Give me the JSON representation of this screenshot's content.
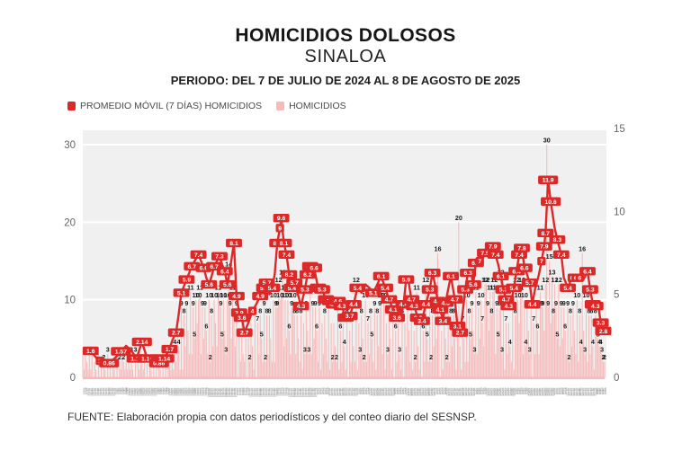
{
  "header": {
    "title": "HOMICIDIOS DOLOSOS",
    "subtitle": "SINALOA",
    "period": "PERIODO: DEL 7 DE JULIO DE 2024 AL 8 DE AGOSTO DE 2025"
  },
  "legend": {
    "items": [
      {
        "label": "PROMEDIO MÓVIL (7 DÍAS) HOMICIDIOS",
        "color": "#de2828"
      },
      {
        "label": "HOMICIDIOS",
        "color": "#f6baba"
      }
    ]
  },
  "footer": {
    "source": "FUENTE: Elaboración propia con datos periodísticos y del conteo diario del SESNSP."
  },
  "chart_data": {
    "type": "bar+line",
    "title": "HOMICIDIOS DOLOSOS — SINALOA",
    "x_start_date": "2024-07-07",
    "x_end_date": "2025-08-08",
    "days": 398,
    "x_tick_date_format": "d/m/yy",
    "left_axis": {
      "series": "HOMICIDIOS (barras diarias)",
      "ticks": [
        0,
        10,
        20,
        30
      ],
      "max": 32
    },
    "right_axis": {
      "series": "PROMEDIO MÓVIL 7 DÍAS (línea)",
      "ticks": [
        0,
        5,
        10,
        15
      ],
      "max": 15
    },
    "grid": "horizontal-white",
    "legend_position": "top-left",
    "moving_avg_points": [
      [
        6,
        1.6
      ],
      [
        10,
        1.2,
        0
      ],
      [
        13,
        1
      ],
      [
        17,
        0.9,
        0
      ],
      [
        20,
        0.86
      ],
      [
        25,
        1.2,
        0
      ],
      [
        29,
        1.57
      ],
      [
        33,
        1.9,
        0
      ],
      [
        37,
        1.6,
        0
      ],
      [
        41,
        1.14
      ],
      [
        45,
        2.14
      ],
      [
        49,
        1.14
      ],
      [
        52,
        1,
        0
      ],
      [
        55,
        1
      ],
      [
        58,
        0.86
      ],
      [
        62,
        1.14
      ],
      [
        66,
        1.7
      ],
      [
        68,
        2.2,
        0
      ],
      [
        71,
        2.7
      ],
      [
        73,
        3.8,
        0
      ],
      [
        75,
        5.1
      ],
      [
        77,
        5.5,
        0
      ],
      [
        79,
        5.9
      ],
      [
        81,
        6.3,
        0
      ],
      [
        83,
        6.7
      ],
      [
        85,
        7,
        0
      ],
      [
        88,
        7.4
      ],
      [
        90,
        7,
        0
      ],
      [
        92,
        6.6
      ],
      [
        94,
        6,
        0
      ],
      [
        96,
        5.6
      ],
      [
        98,
        6.1,
        0
      ],
      [
        100,
        6.7
      ],
      [
        102,
        7,
        0
      ],
      [
        104,
        7.3
      ],
      [
        106,
        6.8,
        0
      ],
      [
        108,
        6.4
      ],
      [
        110,
        5.6
      ],
      [
        112,
        6.5,
        0
      ],
      [
        115,
        8.1
      ],
      [
        117,
        4.9
      ],
      [
        119,
        3.9
      ],
      [
        121,
        3.6
      ],
      [
        123,
        2.7
      ],
      [
        126,
        3.3,
        0
      ],
      [
        129,
        4
      ],
      [
        132,
        4.4,
        0
      ],
      [
        135,
        4.9
      ],
      [
        138,
        5.4
      ],
      [
        140,
        5.7
      ],
      [
        142,
        5,
        0
      ],
      [
        144,
        5.4
      ],
      [
        146,
        6.2,
        0
      ],
      [
        148,
        8.1
      ],
      [
        150,
        9
      ],
      [
        151,
        9.6
      ],
      [
        153,
        8.1
      ],
      [
        155,
        7.4
      ],
      [
        157,
        6.2
      ],
      [
        159,
        5.4
      ],
      [
        161,
        5.7
      ],
      [
        164,
        4.9,
        0
      ],
      [
        166,
        4.3
      ],
      [
        169,
        5.3
      ],
      [
        171,
        6.2
      ],
      [
        173,
        6.7
      ],
      [
        176,
        6.6
      ],
      [
        179,
        5.4
      ],
      [
        182,
        5.3
      ],
      [
        185,
        4.7
      ],
      [
        188,
        4.6
      ],
      [
        191,
        4.4
      ],
      [
        194,
        4.6
      ],
      [
        197,
        4.3
      ],
      [
        200,
        3.6
      ],
      [
        203,
        3.7
      ],
      [
        206,
        4.4
      ],
      [
        209,
        5.4
      ],
      [
        212,
        5.1,
        0
      ],
      [
        215,
        5.6,
        0
      ],
      [
        218,
        5.4,
        0
      ],
      [
        221,
        5.1
      ],
      [
        224,
        5.6,
        0
      ],
      [
        227,
        6.1
      ],
      [
        230,
        5.4
      ],
      [
        233,
        4.7
      ],
      [
        236,
        4.1
      ],
      [
        239,
        3.6
      ],
      [
        241,
        3.4,
        0
      ],
      [
        244,
        4.4
      ],
      [
        246,
        5.9
      ],
      [
        248,
        5.7,
        0
      ],
      [
        250,
        4.7
      ],
      [
        252,
        4.3
      ],
      [
        255,
        3.6
      ],
      [
        258,
        3.4
      ],
      [
        261,
        4.4
      ],
      [
        264,
        5.3
      ],
      [
        266,
        6.3
      ],
      [
        268,
        5.6,
        0
      ],
      [
        270,
        4.6
      ],
      [
        272,
        4.1
      ],
      [
        274,
        3.4
      ],
      [
        276,
        4.5
      ],
      [
        278,
        5.3,
        0
      ],
      [
        280,
        6.1
      ],
      [
        283,
        4.7
      ],
      [
        285,
        3.1
      ],
      [
        287,
        2.7
      ],
      [
        289,
        3.9,
        0
      ],
      [
        291,
        5.3
      ],
      [
        293,
        6.3
      ],
      [
        295,
        6.5,
        0
      ],
      [
        297,
        5.6
      ],
      [
        299,
        6.9
      ],
      [
        302,
        7
      ],
      [
        304,
        7.1,
        0
      ],
      [
        306,
        7.5
      ],
      [
        308,
        7.3,
        0
      ],
      [
        310,
        7.7,
        0
      ],
      [
        312,
        7.9
      ],
      [
        314,
        7.4
      ],
      [
        316,
        6.8,
        0
      ],
      [
        318,
        6.1
      ],
      [
        320,
        5.3
      ],
      [
        322,
        4.7
      ],
      [
        324,
        4.3
      ],
      [
        326,
        4.6,
        0
      ],
      [
        328,
        5.4
      ],
      [
        330,
        6.4
      ],
      [
        332,
        7.4
      ],
      [
        334,
        7.8
      ],
      [
        336,
        6.6
      ],
      [
        338,
        6.2,
        0
      ],
      [
        340,
        5.7
      ],
      [
        342,
        4.4
      ],
      [
        344,
        5.3,
        0
      ],
      [
        347,
        6.2,
        0
      ],
      [
        349,
        7
      ],
      [
        351,
        7.9
      ],
      [
        352,
        8.7
      ],
      [
        354,
        11.9
      ],
      [
        356,
        10.6
      ],
      [
        359,
        9,
        0
      ],
      [
        361,
        8.3
      ],
      [
        364,
        7.4
      ],
      [
        366,
        6,
        0
      ],
      [
        369,
        5.4
      ],
      [
        372,
        6
      ],
      [
        375,
        6
      ],
      [
        378,
        6
      ],
      [
        381,
        5.9,
        0
      ],
      [
        384,
        6.4
      ],
      [
        386,
        5.3
      ],
      [
        388,
        4.4
      ],
      [
        390,
        4.3
      ],
      [
        392,
        4.5,
        0
      ],
      [
        394,
        3.3
      ],
      [
        396,
        2.8
      ]
    ],
    "bar_values_labeled": [
      [
        88,
        10
      ],
      [
        104,
        10
      ],
      [
        111,
        14
      ],
      [
        148,
        9
      ],
      [
        150,
        10
      ],
      [
        151,
        11
      ],
      [
        160,
        10
      ],
      [
        208,
        12
      ],
      [
        227,
        10
      ],
      [
        254,
        11
      ],
      [
        261,
        12
      ],
      [
        270,
        16
      ],
      [
        286,
        20
      ],
      [
        303,
        10
      ],
      [
        307,
        12
      ],
      [
        312,
        11
      ],
      [
        318,
        13
      ],
      [
        330,
        12
      ],
      [
        333,
        11
      ],
      [
        336,
        10
      ],
      [
        349,
        9
      ],
      [
        353,
        30
      ],
      [
        357,
        13
      ],
      [
        380,
        16
      ],
      [
        391,
        6
      ],
      [
        392,
        5
      ],
      [
        393,
        4
      ],
      [
        394,
        4
      ],
      [
        395,
        3
      ],
      [
        396,
        2
      ],
      [
        397,
        2
      ]
    ],
    "bar_pattern_high": [
      2,
      -2,
      3,
      0,
      -3,
      4,
      -4
    ],
    "bar_pattern_low": [
      1,
      -1,
      1,
      0,
      -1,
      2,
      -1
    ],
    "colors": {
      "bar": "#f6baba",
      "line": "#de2828",
      "panel": "#f0f0f0",
      "grid": "#ffffff",
      "bar_label": "#1a1a1a",
      "ma_label_bg": "#de2828",
      "ma_label_text": "#ffffff",
      "axis_text": "#666666",
      "date_band": "#7d7d7d"
    }
  }
}
